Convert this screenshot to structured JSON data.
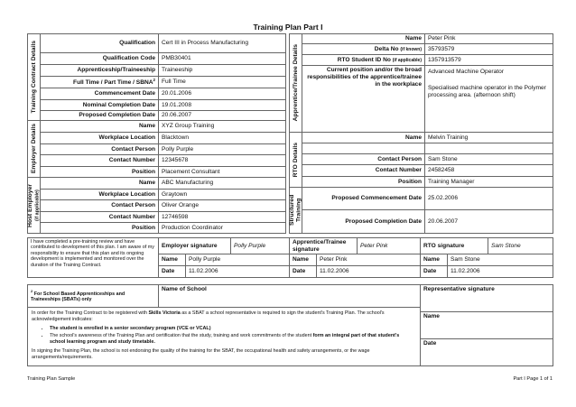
{
  "title": "Training Plan Part I",
  "training_contract": {
    "heading": "Training Contract Details",
    "rows": [
      {
        "label": "Qualification",
        "value": "Cert III in Process Manufacturing"
      },
      {
        "label": "Qualification Code",
        "value": "PMB30401"
      },
      {
        "label": "Apprenticeship/Traineeship",
        "value": "Traineeship"
      },
      {
        "label": "Full Time / Part Time / SBNA",
        "note_ref": "2",
        "value": "Full Time"
      },
      {
        "label": "Commencement Date",
        "value": "20.01.2006"
      },
      {
        "label": "Nominal Completion Date",
        "value": "19.01.2008"
      },
      {
        "label": "Proposed Completion Date",
        "value": "20.06.2007"
      }
    ]
  },
  "employer": {
    "heading": "Employer Details",
    "rows": [
      {
        "label": "Name",
        "value": "XYZ Group Training"
      },
      {
        "label": "Workplace Location",
        "value": "Blacktown"
      },
      {
        "label": "Contact Person",
        "value": "Polly Purple"
      },
      {
        "label": "Contact Number",
        "value": "12345678"
      },
      {
        "label": "Position",
        "value": "Placement Consultant"
      }
    ]
  },
  "host_employer": {
    "heading": "Host Employer",
    "subheading": "(if applicable)",
    "rows": [
      {
        "label": "Name",
        "value": "ABC Manufacturing"
      },
      {
        "label": "Workplace Location",
        "value": "Graytown"
      },
      {
        "label": "Contact Person",
        "value": "Oliver Orange"
      },
      {
        "label": "Contact Number",
        "value": "12746598"
      },
      {
        "label": "Position",
        "value": "Production Coordinator"
      }
    ]
  },
  "apprentice": {
    "heading": "Apprentice/Trainee Details",
    "rows": [
      {
        "label": "Name",
        "value": "Peter Pink"
      },
      {
        "label": "Delta No",
        "small": "(if known)",
        "value": "35793579"
      },
      {
        "label": "RTO Student ID No",
        "small": "(if applicable)",
        "value": "1357913579"
      },
      {
        "label": "Current position and/or the broad responsibilities of the apprentice/trainee in the workplace",
        "value": "Advanced Machine Operator",
        "value2": "Specialised machine operator in the Polymer processing area. (afternoon shift)"
      }
    ]
  },
  "rto": {
    "heading": "RTO Details",
    "rows": [
      {
        "label": "Name",
        "value": "Melvin Training"
      },
      {
        "label": "Contact Person",
        "value": "Sam Stone"
      },
      {
        "label": "Contact Number",
        "value": "24582458"
      },
      {
        "label": "Position",
        "value": "Training Manager"
      }
    ]
  },
  "structured_training": {
    "heading": "Structured Training",
    "rows": [
      {
        "label": "Proposed Commencement Date",
        "value": "25.02.2006"
      },
      {
        "label": "Proposed Completion Date",
        "value": "20.06.2007"
      }
    ]
  },
  "declaration": "I have completed a pre-training review and have contributed to development of this plan. I am aware of my responsibility to ensure that this plan and its ongoing development is implemented and monitored over the duration of the Training Contract.",
  "signatures": [
    {
      "label": "Employer signature",
      "signature": "Polly Purple",
      "name_label": "Name",
      "name": "Polly Purple",
      "date_label": "Date",
      "date": "11.02.2006"
    },
    {
      "label": "Apprentice/Trainee signature",
      "signature": "Peter Pink",
      "name_label": "Name",
      "name": "Peter Pink",
      "date_label": "Date",
      "date": "11.02.2006"
    },
    {
      "label": "RTO signature",
      "signature": "Sam Stone",
      "name_label": "Name",
      "name": "Sam Stone",
      "date_label": "Date",
      "date": "11.02.2006"
    }
  ],
  "school": {
    "note_ref": "2",
    "note": "For School Based Apprenticeships and Traineeships (SBATs) only",
    "name_of_school": "Name of School",
    "representative_signature": "Representative signature",
    "name_label": "Name",
    "date_label": "Date",
    "paragraph1": [
      {
        "text": "In order for the Training Contract to be registered with "
      },
      {
        "text": "Skills Victoria",
        "bold": true
      },
      {
        "text": " as a SBAT a school representative is required to sign the student's Training Plan. The school's acknowledgement indicates:"
      }
    ],
    "bullets": [
      [
        {
          "text": "The student is enrolled in a senior secondary program (VCE or VCAL)",
          "bold": true
        }
      ],
      [
        {
          "text": "The school's awareness of the Training Plan and certification that the study, training and work commitments of the student "
        },
        {
          "text": "form an integral part of that student's school learning program and study timetable.",
          "bold": true
        }
      ]
    ],
    "paragraph2": [
      {
        "text": "In signing the Training Plan, the school is not endorsing the quality of the training for the SBAT, the occupational health and safety arrangements, or the wage arrangements/requirements."
      }
    ]
  },
  "footer": {
    "left": "Training Plan Sample",
    "right": "Part I Page 1 of 1"
  }
}
